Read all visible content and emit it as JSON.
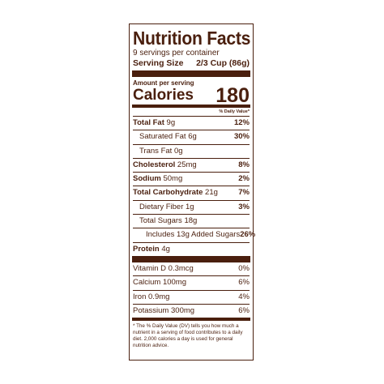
{
  "label": {
    "title": "Nutrition Facts",
    "servings": "9 servings per container",
    "serving_size_label": "Serving Size",
    "serving_size_value": "2/3 Cup (86g)",
    "amount_per_serving": "Amount per serving",
    "calories_label": "Calories",
    "calories_value": "180",
    "dv_header": "% Daily Value*",
    "nutrients": [
      {
        "name": "Total Fat",
        "amount": "9g",
        "dv": "12%"
      },
      {
        "name": "Saturated Fat",
        "amount": "6g",
        "dv": "30%"
      },
      {
        "name": "Trans Fat",
        "amount": "0g",
        "dv": ""
      },
      {
        "name": "Cholesterol",
        "amount": "25mg",
        "dv": "8%"
      },
      {
        "name": "Sodium",
        "amount": "50mg",
        "dv": "2%"
      },
      {
        "name": "Total Carbohydrate",
        "amount": "21g",
        "dv": "7%"
      },
      {
        "name": "Dietary Fiber",
        "amount": "1g",
        "dv": "3%"
      },
      {
        "name": "Total Sugars",
        "amount": "18g",
        "dv": ""
      },
      {
        "name": "Includes 13g Added Sugars",
        "amount": "",
        "dv": "26%"
      },
      {
        "name": "Protein",
        "amount": "4g",
        "dv": ""
      }
    ],
    "vitamins": [
      {
        "name": "Vitamin D",
        "amount": "0.3mcg",
        "dv": "0%"
      },
      {
        "name": "Calcium",
        "amount": "100mg",
        "dv": "6%"
      },
      {
        "name": "Iron",
        "amount": "0.9mg",
        "dv": "4%"
      },
      {
        "name": "Potassium",
        "amount": "300mg",
        "dv": "6%"
      }
    ],
    "footnote": "* The % Daily Value (DV) tells you how much a nutrient in a serving of food contributes to a daily diet. 2,000 calories a day is used for general nutrition advice.",
    "color": "#4a1f0e"
  }
}
